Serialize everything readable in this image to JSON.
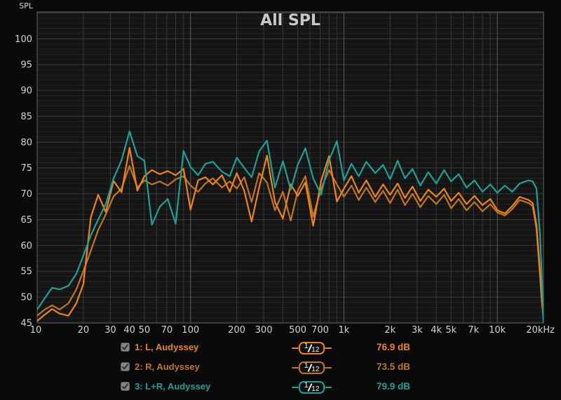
{
  "title": "All SPL",
  "colors": {
    "background": "#0a0a0a",
    "plot_background": "#151515",
    "grid_minor_h": "#232323",
    "grid_major_h": "#3b3b3b",
    "grid_step_v": "#383838",
    "grid_decade_v": "#5c5c5c",
    "plot_border": "#565656",
    "tick_text": "#d4d4d4",
    "title_text": "#c8c8c8",
    "trace_l": "#f08414",
    "trace_r": "#c0761c",
    "trace_lr": "#1ba294"
  },
  "axis": {
    "y_label": "SPL",
    "y_ticks": [
      100,
      95,
      90,
      85,
      80,
      75,
      70,
      65,
      60,
      55,
      50,
      45
    ],
    "y_min": 45,
    "y_max": 105.2,
    "x_ticks": [
      {
        "f": 10,
        "label": "10"
      },
      {
        "f": 20,
        "label": "20"
      },
      {
        "f": 30,
        "label": "30"
      },
      {
        "f": 40,
        "label": "40"
      },
      {
        "f": 50,
        "label": "50"
      },
      {
        "f": 70,
        "label": "70"
      },
      {
        "f": 100,
        "label": "100"
      },
      {
        "f": 200,
        "label": "200"
      },
      {
        "f": 300,
        "label": "300"
      },
      {
        "f": 500,
        "label": "500"
      },
      {
        "f": 700,
        "label": "700"
      },
      {
        "f": 1000,
        "label": "1k"
      },
      {
        "f": 2000,
        "label": "2k"
      },
      {
        "f": 3000,
        "label": "3k"
      },
      {
        "f": 4000,
        "label": "4k"
      },
      {
        "f": 5000,
        "label": "5k"
      },
      {
        "f": 7000,
        "label": "7k"
      },
      {
        "f": 10000,
        "label": "10k"
      },
      {
        "f": 20000,
        "label": "20kHz"
      }
    ]
  },
  "chart_data": {
    "type": "line",
    "title": "All SPL",
    "x_scale": "log",
    "xlim": [
      10,
      20000
    ],
    "ylabel": "SPL (dB)",
    "ylim": [
      45,
      105
    ],
    "grid": true,
    "legend_position": "bottom",
    "frequencies_hz": [
      10,
      11.2,
      12.5,
      14,
      16,
      18,
      20,
      22.4,
      25,
      28,
      31.5,
      35.5,
      40,
      45,
      50,
      56,
      63,
      71,
      80,
      90,
      100,
      112,
      125,
      140,
      160,
      180,
      200,
      224,
      250,
      280,
      315,
      355,
      400,
      450,
      500,
      560,
      630,
      710,
      800,
      900,
      1000,
      1120,
      1250,
      1400,
      1600,
      1800,
      2000,
      2240,
      2500,
      2800,
      3150,
      3550,
      4000,
      4500,
      5000,
      5600,
      6300,
      7100,
      8000,
      9000,
      10000,
      11200,
      12500,
      14000,
      16000,
      17000,
      18000,
      19000,
      19500,
      20000
    ],
    "series": [
      {
        "name": "1: L, Audyssey",
        "color": "#f08414",
        "smoothing": "1/12",
        "avg_spl_db": 76.9,
        "values": [
          45.4,
          46.6,
          47.7,
          46.8,
          46.4,
          48.8,
          52.5,
          65.5,
          69.8,
          66.5,
          72.5,
          70.3,
          78.9,
          70.6,
          73.4,
          74.6,
          73.8,
          74.4,
          73.6,
          74.8,
          66.9,
          72.6,
          73.2,
          71.8,
          73.6,
          70.4,
          74.0,
          70.6,
          64.6,
          71.2,
          77.4,
          68.4,
          65.2,
          71.8,
          69.6,
          72.2,
          63.8,
          72.5,
          77.3,
          68.5,
          71.0,
          73.4,
          70.2,
          72.6,
          69.4,
          71.8,
          69.8,
          72.0,
          69.2,
          71.4,
          68.6,
          70.8,
          69.4,
          71.0,
          68.6,
          70.2,
          68.0,
          69.6,
          67.8,
          69.0,
          66.8,
          66.2,
          67.6,
          69.4,
          68.8,
          68.2,
          64.0,
          55.0,
          50.0,
          45.5
        ]
      },
      {
        "name": "2: R, Audyssey",
        "color": "#c0761c",
        "smoothing": "1/12",
        "avg_spl_db": 73.5,
        "values": [
          46.4,
          47.6,
          48.4,
          47.6,
          48.8,
          51.5,
          55.0,
          59.0,
          63.0,
          66.0,
          69.5,
          71.0,
          75.4,
          71.2,
          72.6,
          71.8,
          72.4,
          71.6,
          72.8,
          73.4,
          71.6,
          70.4,
          72.0,
          73.0,
          71.2,
          72.4,
          71.0,
          73.2,
          68.4,
          74.0,
          72.2,
          66.8,
          70.4,
          64.8,
          70.6,
          73.4,
          65.6,
          71.0,
          74.6,
          71.8,
          69.4,
          71.6,
          68.8,
          71.2,
          68.4,
          70.6,
          68.2,
          70.8,
          67.8,
          70.0,
          67.4,
          69.6,
          68.0,
          69.8,
          67.2,
          69.0,
          66.8,
          68.4,
          66.6,
          68.0,
          66.4,
          65.8,
          67.0,
          68.8,
          68.2,
          67.6,
          63.2,
          54.0,
          49.0,
          46.0
        ]
      },
      {
        "name": "3: L+R, Audyssey",
        "color": "#1ba294",
        "smoothing": "1/12",
        "avg_spl_db": 79.9,
        "values": [
          47.6,
          49.8,
          51.8,
          51.5,
          52.2,
          54.5,
          58.0,
          62.0,
          65.0,
          68.0,
          73.0,
          76.5,
          82.1,
          77.3,
          76.4,
          64.0,
          67.5,
          69.0,
          64.2,
          78.3,
          75.2,
          73.6,
          75.8,
          76.2,
          74.3,
          73.4,
          77.0,
          75.0,
          73.2,
          78.2,
          80.3,
          71.2,
          76.3,
          70.8,
          75.6,
          78.8,
          73.0,
          69.8,
          76.5,
          80.2,
          72.6,
          75.8,
          73.4,
          76.2,
          74.0,
          75.6,
          72.8,
          76.4,
          73.0,
          74.8,
          71.6,
          74.2,
          72.0,
          74.6,
          72.4,
          73.8,
          71.2,
          72.6,
          70.4,
          71.8,
          70.2,
          71.6,
          70.4,
          72.0,
          72.6,
          72.4,
          71.0,
          62.0,
          54.0,
          45.0
        ]
      }
    ]
  },
  "legend": {
    "rows": [
      {
        "label": "1: L, Audyssey",
        "checked": true,
        "smoothing_num": "1",
        "smoothing_den": "12",
        "value": "76.9 dB",
        "color": "#f08414"
      },
      {
        "label": "2: R, Audyssey",
        "checked": true,
        "smoothing_num": "1",
        "smoothing_den": "12",
        "value": "73.5 dB",
        "color": "#c0761c"
      },
      {
        "label": "3: L+R, Audyssey",
        "checked": true,
        "smoothing_num": "1",
        "smoothing_den": "12",
        "value": "79.9 dB",
        "color": "#1ba294"
      }
    ]
  }
}
